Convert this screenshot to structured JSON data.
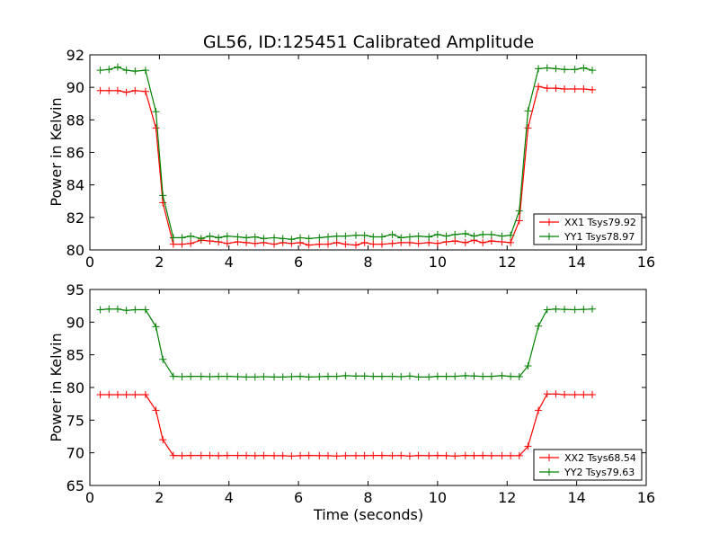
{
  "chart_data": [
    {
      "type": "line",
      "title": "GL56, ID:125451 Calibrated Amplitude",
      "xlabel": "",
      "ylabel": "Power in Kelvin",
      "xlim": [
        0,
        16
      ],
      "ylim": [
        80,
        92
      ],
      "xticks": [
        "0",
        "2",
        "4",
        "6",
        "8",
        "10",
        "12",
        "14",
        "16"
      ],
      "yticks": [
        "80",
        "82",
        "84",
        "86",
        "88",
        "90",
        "92"
      ],
      "legend_position": "lower-right",
      "x": [
        0.3,
        0.55,
        0.8,
        1.05,
        1.3,
        1.6,
        1.9,
        2.1,
        2.4,
        2.65,
        2.9,
        3.2,
        3.45,
        3.7,
        3.95,
        4.25,
        4.5,
        4.75,
        5.0,
        5.3,
        5.55,
        5.8,
        6.05,
        6.3,
        6.6,
        6.85,
        7.1,
        7.35,
        7.65,
        7.9,
        8.15,
        8.4,
        8.7,
        8.95,
        9.2,
        9.45,
        9.75,
        10.0,
        10.25,
        10.5,
        10.8,
        11.05,
        11.3,
        11.55,
        11.85,
        12.1,
        12.35,
        12.6,
        12.9,
        13.15,
        13.4,
        13.65,
        13.95,
        14.2,
        14.45
      ],
      "series": [
        {
          "name": "XX1 Tsys79.92",
          "color": "#ff0000",
          "values": [
            89.8,
            89.8,
            89.8,
            89.7,
            89.8,
            89.75,
            87.5,
            82.9,
            80.35,
            80.35,
            80.4,
            80.6,
            80.55,
            80.5,
            80.4,
            80.5,
            80.45,
            80.4,
            80.45,
            80.35,
            80.45,
            80.4,
            80.45,
            80.3,
            80.35,
            80.35,
            80.45,
            80.35,
            80.3,
            80.45,
            80.35,
            80.35,
            80.4,
            80.45,
            80.45,
            80.4,
            80.45,
            80.4,
            80.5,
            80.55,
            80.45,
            80.6,
            80.45,
            80.55,
            80.5,
            80.45,
            81.8,
            87.5,
            90.05,
            89.95,
            89.95,
            89.9,
            89.9,
            89.9,
            89.85
          ]
        },
        {
          "name": "YY1 Tsys78.97",
          "color": "#008000",
          "values": [
            91.05,
            91.1,
            91.25,
            91.05,
            91.0,
            91.05,
            88.5,
            83.35,
            80.75,
            80.75,
            80.85,
            80.7,
            80.85,
            80.75,
            80.85,
            80.8,
            80.75,
            80.8,
            80.7,
            80.75,
            80.7,
            80.65,
            80.75,
            80.7,
            80.75,
            80.8,
            80.85,
            80.85,
            80.9,
            80.9,
            80.8,
            80.8,
            80.95,
            80.75,
            80.8,
            80.85,
            80.8,
            80.95,
            80.85,
            80.95,
            81.0,
            80.85,
            80.95,
            80.95,
            80.85,
            80.9,
            82.4,
            88.55,
            91.15,
            91.2,
            91.15,
            91.1,
            91.1,
            91.2,
            91.05
          ]
        }
      ]
    },
    {
      "type": "line",
      "title": "",
      "xlabel": "Time (seconds)",
      "ylabel": "Power in Kelvin",
      "xlim": [
        0,
        16
      ],
      "ylim": [
        65,
        95
      ],
      "xticks": [
        "0",
        "2",
        "4",
        "6",
        "8",
        "10",
        "12",
        "14",
        "16"
      ],
      "yticks": [
        "65",
        "70",
        "75",
        "80",
        "85",
        "90",
        "95"
      ],
      "legend_position": "lower-right",
      "x": [
        0.3,
        0.55,
        0.8,
        1.05,
        1.3,
        1.6,
        1.9,
        2.1,
        2.4,
        2.65,
        2.9,
        3.2,
        3.45,
        3.7,
        3.95,
        4.25,
        4.5,
        4.75,
        5.0,
        5.3,
        5.55,
        5.8,
        6.05,
        6.3,
        6.6,
        6.85,
        7.1,
        7.35,
        7.65,
        7.9,
        8.15,
        8.4,
        8.7,
        8.95,
        9.2,
        9.45,
        9.75,
        10.0,
        10.25,
        10.5,
        10.8,
        11.05,
        11.3,
        11.55,
        11.85,
        12.1,
        12.35,
        12.6,
        12.9,
        13.15,
        13.4,
        13.65,
        13.95,
        14.2,
        14.45
      ],
      "series": [
        {
          "name": "XX2 Tsys68.54",
          "color": "#ff0000",
          "values": [
            78.9,
            78.9,
            78.9,
            78.9,
            78.9,
            78.9,
            76.5,
            72.0,
            69.6,
            69.55,
            69.6,
            69.6,
            69.6,
            69.55,
            69.6,
            69.6,
            69.6,
            69.55,
            69.6,
            69.55,
            69.55,
            69.5,
            69.55,
            69.6,
            69.55,
            69.55,
            69.5,
            69.55,
            69.55,
            69.55,
            69.6,
            69.6,
            69.55,
            69.6,
            69.5,
            69.6,
            69.55,
            69.6,
            69.55,
            69.5,
            69.6,
            69.55,
            69.6,
            69.55,
            69.55,
            69.55,
            69.55,
            71.0,
            76.5,
            79.0,
            79.0,
            78.9,
            78.9,
            78.9,
            78.9
          ]
        },
        {
          "name": "YY2 Tsys79.63",
          "color": "#008000",
          "values": [
            91.9,
            92.0,
            92.0,
            91.8,
            91.9,
            91.9,
            89.3,
            84.3,
            81.7,
            81.65,
            81.7,
            81.7,
            81.65,
            81.7,
            81.7,
            81.65,
            81.6,
            81.6,
            81.65,
            81.6,
            81.6,
            81.65,
            81.7,
            81.6,
            81.65,
            81.7,
            81.7,
            81.8,
            81.75,
            81.75,
            81.7,
            81.7,
            81.7,
            81.65,
            81.75,
            81.6,
            81.6,
            81.7,
            81.7,
            81.7,
            81.8,
            81.75,
            81.7,
            81.7,
            81.8,
            81.7,
            81.65,
            83.3,
            89.4,
            91.9,
            92.0,
            91.95,
            91.9,
            91.95,
            92.0
          ]
        }
      ]
    }
  ]
}
